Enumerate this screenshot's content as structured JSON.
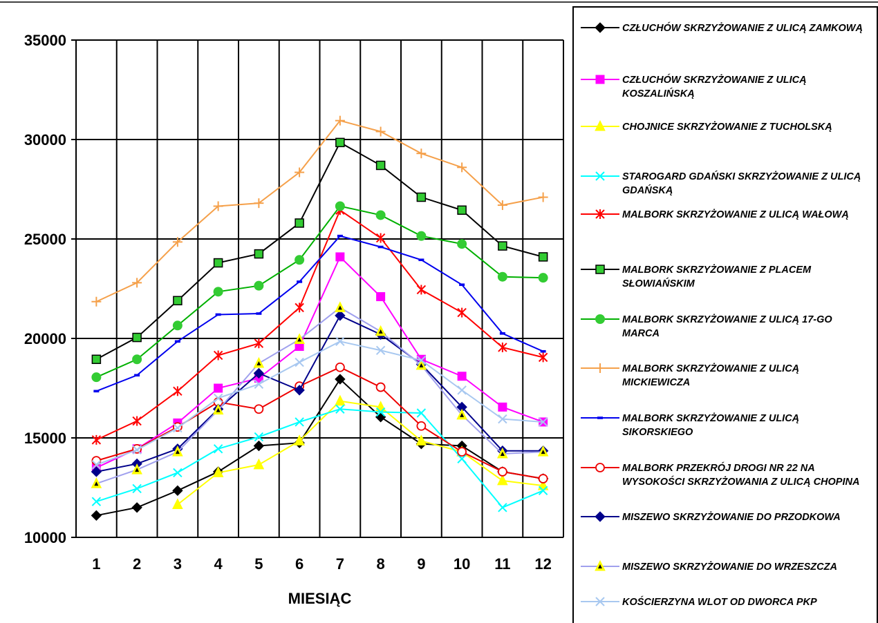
{
  "chart_data": {
    "type": "line",
    "xlabel": "MIESIĄC",
    "ylabel": "",
    "ylim": [
      10000,
      35000
    ],
    "yticks": [
      10000,
      15000,
      20000,
      25000,
      30000,
      35000
    ],
    "categories": [
      "1",
      "2",
      "3",
      "4",
      "5",
      "6",
      "7",
      "8",
      "9",
      "10",
      "11",
      "12"
    ],
    "grid": true,
    "legend_position": "right",
    "series": [
      {
        "name": "CZŁUCHÓW SKRZYŻOWANIE Z ULICĄ ZAMKOWĄ",
        "color": "#000000",
        "marker": "diamond",
        "values": [
          11100,
          11500,
          12350,
          13300,
          14600,
          14750,
          17950,
          16050,
          14700,
          14600,
          13300,
          12950
        ]
      },
      {
        "name": "CZŁUCHÓW SKRZYŻOWANIE Z ULICĄ KOSZALIŃSKĄ",
        "color": "#ff00ff",
        "marker": "square",
        "values": [
          13500,
          14450,
          15750,
          17500,
          18000,
          19600,
          24100,
          22100,
          18950,
          18100,
          16550,
          15800
        ]
      },
      {
        "name": "CHOJNICE SKRZYŻOWANIE Z TUCHOLSKĄ",
        "color": "#ffff00",
        "marker": "triangle",
        "values": [
          null,
          null,
          11650,
          13250,
          13650,
          14850,
          16850,
          16550,
          14850,
          14300,
          12850,
          12600
        ]
      },
      {
        "name": "STAROGARD GDAŃSKI SKRZYŻOWANIE Z ULICĄ GDAŃSKĄ",
        "color": "#00ffff",
        "marker": "x",
        "values": [
          11800,
          12450,
          13250,
          14450,
          15050,
          15800,
          16450,
          16300,
          16250,
          13950,
          11500,
          12350
        ]
      },
      {
        "name": "MALBORK SKRZYŻOWANIE Z ULICĄ WAŁOWĄ",
        "color": "#ff0000",
        "marker": "asterisk",
        "values": [
          14900,
          15850,
          17350,
          19150,
          19750,
          21550,
          26450,
          25050,
          22450,
          21300,
          19550,
          19050
        ]
      },
      {
        "name": "MALBORK SKRZYŻOWANIE Z PLACEM SŁOWIAŃSKIM",
        "color": "#000000",
        "marker": "square-green",
        "values": [
          18950,
          20050,
          21900,
          23800,
          24250,
          25800,
          29850,
          28700,
          27100,
          26450,
          24650,
          24100
        ]
      },
      {
        "name": "MALBORK SKRZYŻOWANIE Z ULICĄ 17-GO MARCA",
        "color": "#00b000",
        "marker": "circle",
        "values": [
          18050,
          18950,
          20650,
          22350,
          22650,
          23950,
          26650,
          26200,
          25150,
          24750,
          23100,
          23050
        ]
      },
      {
        "name": "MALBORK SKRZYŻOWANIE Z ULICĄ MICKIEWICZA",
        "color": "#f5a04a",
        "marker": "plus",
        "values": [
          21850,
          22800,
          24850,
          26650,
          26800,
          28350,
          30950,
          30400,
          29300,
          28600,
          26700,
          27100
        ]
      },
      {
        "name": "MALBORK SKRZYŻOWANIE Z ULICĄ SIKORSKIEGO",
        "color": "#0000ee",
        "marker": "dash",
        "values": [
          17350,
          18150,
          19850,
          21200,
          21250,
          22850,
          25150,
          24600,
          23950,
          22700,
          20250,
          19350
        ]
      },
      {
        "name": "MALBORK PRZEKRÓJ DROGI NR 22 NA WYSOKOŚCI SKRZYŻOWANIA Z ULICĄ CHOPINA",
        "color": "#ee0000",
        "marker": "open-circle",
        "values": [
          13850,
          14450,
          15550,
          16800,
          16450,
          17600,
          18550,
          17550,
          15600,
          14300,
          13300,
          12950
        ]
      },
      {
        "name": "MISZEWO SKRZYŻOWANIE DO PRZODKOWA",
        "color": "#00008b",
        "marker": "diamond-navy",
        "values": [
          13300,
          13700,
          14450,
          16450,
          18250,
          17400,
          21150,
          20200,
          18700,
          16550,
          14350,
          14350
        ]
      },
      {
        "name": "MISZEWO SKRZYŻOWANIE DO WRZESZCZA",
        "color": "#a0a0ee",
        "marker": "triangle-black",
        "values": [
          12700,
          13400,
          14300,
          16400,
          18750,
          19950,
          21550,
          20350,
          18650,
          16150,
          14200,
          14300
        ]
      },
      {
        "name": "KOŚCIERZYNA WLOT OD DWORCA PKP",
        "color": "#a8c8f0",
        "marker": "x-light",
        "values": [
          13650,
          14400,
          15500,
          17000,
          17700,
          18800,
          19850,
          19400,
          18900,
          17400,
          15950,
          15800
        ]
      }
    ]
  }
}
